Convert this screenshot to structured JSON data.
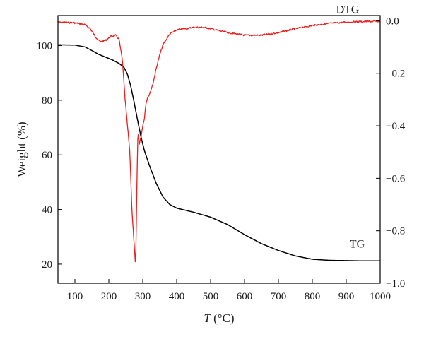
{
  "chart_data": {
    "type": "line",
    "xlabel": {
      "italic": "T",
      "rest": " (°C)"
    },
    "ylabel": "Weight (%)",
    "xlim": [
      50,
      1000
    ],
    "ylim_left": [
      13,
      111
    ],
    "ylim_right": [
      -1.0,
      0.02
    ],
    "xticks": [
      100,
      200,
      300,
      400,
      500,
      600,
      700,
      800,
      900,
      1000
    ],
    "xtick_labels": [
      "100",
      "200",
      "300",
      "400",
      "500",
      "600",
      "700",
      "800",
      "900",
      "1000"
    ],
    "yticks_left": [
      20,
      40,
      60,
      80,
      100
    ],
    "ytick_labels_left": [
      "20",
      "40",
      "60",
      "80",
      "100"
    ],
    "yticks_right": [
      0.0,
      -0.2,
      -0.4,
      -0.6,
      -0.8,
      -1.0
    ],
    "ytick_labels_right": [
      "0.0",
      "−0.2",
      "−0.4",
      "−0.6",
      "−0.8",
      "−1.0"
    ],
    "grid": false,
    "series": [
      {
        "name": "TG",
        "axis": "left",
        "color": "#000000",
        "x": [
          50,
          100,
          130,
          150,
          170,
          190,
          210,
          230,
          245,
          255,
          265,
          275,
          285,
          295,
          305,
          320,
          340,
          360,
          380,
          400,
          450,
          500,
          550,
          600,
          650,
          700,
          750,
          800,
          850,
          900,
          950,
          1000
        ],
        "y": [
          100.3,
          100.2,
          99.5,
          98.2,
          96.8,
          95.8,
          94.8,
          93.5,
          92.0,
          89.5,
          85.0,
          79.0,
          72.5,
          66.5,
          61.5,
          56.0,
          49.5,
          44.5,
          41.8,
          40.5,
          39.0,
          37.2,
          34.5,
          30.8,
          27.5,
          25.0,
          23.0,
          21.8,
          21.4,
          21.3,
          21.2,
          21.2
        ]
      },
      {
        "name": "DTG",
        "axis": "right",
        "color": "#ee1c1c",
        "x": [
          50,
          100,
          130,
          145,
          160,
          175,
          190,
          205,
          220,
          230,
          240,
          248,
          255,
          262,
          268,
          272,
          276,
          278,
          280,
          283,
          286,
          290,
          295,
          300,
          305,
          310,
          315,
          320,
          330,
          340,
          350,
          360,
          380,
          400,
          450,
          480,
          500,
          550,
          600,
          650,
          700,
          750,
          800,
          850,
          900,
          950,
          1000
        ],
        "y": [
          -0.005,
          -0.008,
          -0.015,
          -0.03,
          -0.06,
          -0.08,
          -0.075,
          -0.06,
          -0.055,
          -0.07,
          -0.15,
          -0.3,
          -0.4,
          -0.5,
          -0.72,
          -0.8,
          -0.88,
          -0.92,
          -0.87,
          -0.6,
          -0.42,
          -0.47,
          -0.44,
          -0.4,
          -0.37,
          -0.31,
          -0.29,
          -0.28,
          -0.24,
          -0.18,
          -0.13,
          -0.09,
          -0.05,
          -0.035,
          -0.025,
          -0.025,
          -0.03,
          -0.045,
          -0.055,
          -0.055,
          -0.045,
          -0.03,
          -0.018,
          -0.01,
          -0.005,
          -0.003,
          -0.002
        ]
      }
    ],
    "annotations": [
      {
        "text": "DTG",
        "x": 870,
        "y_right": 0.03,
        "axis": "right"
      },
      {
        "text": "TG",
        "x": 910,
        "y_left": 26,
        "axis": "left"
      }
    ]
  }
}
